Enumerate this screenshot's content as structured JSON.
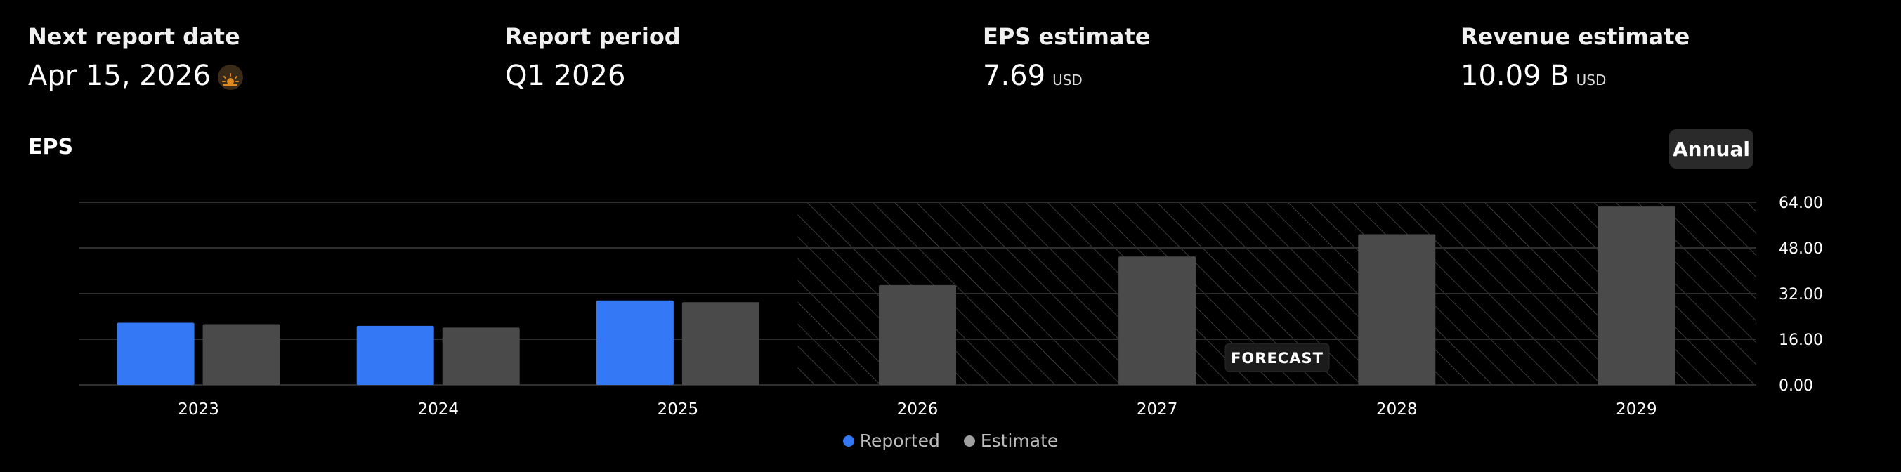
{
  "stats": [
    {
      "label": "Next report date",
      "value": "Apr 15, 2026",
      "unit": "",
      "icon": "sun-icon"
    },
    {
      "label": "Report period",
      "value": "Q1 2026",
      "unit": ""
    },
    {
      "label": "EPS estimate",
      "value": "7.69",
      "unit": "USD"
    },
    {
      "label": "Revenue estimate",
      "value": "10.09 B",
      "unit": "USD"
    }
  ],
  "eps_title": "EPS",
  "annual_label": "Annual",
  "colors": {
    "reported": "#3478f6",
    "estimate": "#4a4a4a",
    "grid": "#2e2e2e",
    "hatch": "#3a3a3a",
    "text": "#ffffff"
  },
  "chart_data": {
    "type": "bar",
    "title": "EPS",
    "categories": [
      "2023",
      "2024",
      "2025",
      "2026",
      "2027",
      "2028",
      "2029"
    ],
    "series": [
      {
        "name": "Reported",
        "values": [
          21.8,
          20.7,
          29.6,
          null,
          null,
          null,
          null
        ]
      },
      {
        "name": "Estimate",
        "values": [
          21.3,
          20.1,
          29.0,
          35.0,
          45.0,
          52.8,
          62.5
        ]
      }
    ],
    "y_ticks": [
      "0.00",
      "16.00",
      "32.00",
      "48.00",
      "64.00"
    ],
    "ylim": [
      0,
      64
    ],
    "forecast_start_index": 3,
    "forecast_label": "FORECAST",
    "grid": true,
    "legend_position": "bottom-center"
  }
}
